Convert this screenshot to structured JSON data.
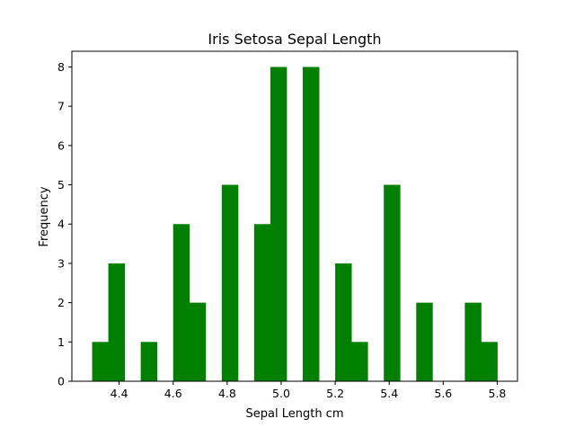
{
  "chart_data": {
    "type": "bar",
    "title": "Iris Setosa Sepal Length",
    "xlabel": "Sepal Length cm",
    "ylabel": "Frequency",
    "xlim": [
      4.225,
      5.875
    ],
    "ylim": [
      0,
      8.4
    ],
    "xticks": [
      "4.4",
      "4.6",
      "4.8",
      "5.0",
      "5.2",
      "5.4",
      "5.6",
      "5.8"
    ],
    "yticks": [
      "0",
      "1",
      "2",
      "3",
      "4",
      "5",
      "6",
      "7",
      "8"
    ],
    "bar_color": "#008000",
    "bins": [
      {
        "start": 4.3,
        "end": 4.36,
        "count": 1
      },
      {
        "start": 4.36,
        "end": 4.42,
        "count": 3
      },
      {
        "start": 4.42,
        "end": 4.48,
        "count": 0
      },
      {
        "start": 4.48,
        "end": 4.54,
        "count": 1
      },
      {
        "start": 4.54,
        "end": 4.6,
        "count": 0
      },
      {
        "start": 4.6,
        "end": 4.66,
        "count": 4
      },
      {
        "start": 4.66,
        "end": 4.72,
        "count": 2
      },
      {
        "start": 4.72,
        "end": 4.78,
        "count": 0
      },
      {
        "start": 4.78,
        "end": 4.84,
        "count": 5
      },
      {
        "start": 4.84,
        "end": 4.9,
        "count": 0
      },
      {
        "start": 4.9,
        "end": 4.96,
        "count": 4
      },
      {
        "start": 4.96,
        "end": 5.02,
        "count": 8
      },
      {
        "start": 5.02,
        "end": 5.08,
        "count": 0
      },
      {
        "start": 5.08,
        "end": 5.14,
        "count": 8
      },
      {
        "start": 5.14,
        "end": 5.2,
        "count": 0
      },
      {
        "start": 5.2,
        "end": 5.26,
        "count": 3
      },
      {
        "start": 5.26,
        "end": 5.32,
        "count": 1
      },
      {
        "start": 5.32,
        "end": 5.38,
        "count": 0
      },
      {
        "start": 5.38,
        "end": 5.44,
        "count": 5
      },
      {
        "start": 5.44,
        "end": 5.5,
        "count": 0
      },
      {
        "start": 5.5,
        "end": 5.56,
        "count": 2
      },
      {
        "start": 5.56,
        "end": 5.62,
        "count": 0
      },
      {
        "start": 5.62,
        "end": 5.68,
        "count": 0
      },
      {
        "start": 5.68,
        "end": 5.74,
        "count": 2
      },
      {
        "start": 5.74,
        "end": 5.8,
        "count": 1
      }
    ]
  }
}
